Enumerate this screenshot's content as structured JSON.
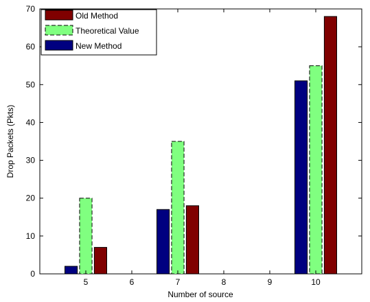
{
  "chart_data": {
    "type": "bar",
    "xlabel": "Number of source",
    "ylabel": "Drop Packets (Pkts)",
    "xlim": [
      4,
      11
    ],
    "ylim": [
      0,
      70
    ],
    "xticks": [
      5,
      6,
      7,
      8,
      9,
      10
    ],
    "yticks": [
      0,
      10,
      20,
      30,
      40,
      50,
      60,
      70
    ],
    "bar_width": 0.27,
    "legend_position": "top-left",
    "series": [
      {
        "name": "Old Method",
        "color": "#800000",
        "dashed": false,
        "offset": 0.32,
        "points": [
          {
            "x": 5,
            "y": 7
          },
          {
            "x": 7,
            "y": 18
          },
          {
            "x": 10,
            "y": 68
          }
        ]
      },
      {
        "name": "Theoretical Value",
        "color": "#80ff80",
        "dashed": true,
        "offset": 0,
        "points": [
          {
            "x": 5,
            "y": 20
          },
          {
            "x": 7,
            "y": 35
          },
          {
            "x": 10,
            "y": 55
          }
        ]
      },
      {
        "name": "New Method",
        "color": "#000080",
        "dashed": false,
        "offset": -0.32,
        "points": [
          {
            "x": 5,
            "y": 2
          },
          {
            "x": 7,
            "y": 17
          },
          {
            "x": 10,
            "y": 51
          }
        ]
      }
    ]
  }
}
